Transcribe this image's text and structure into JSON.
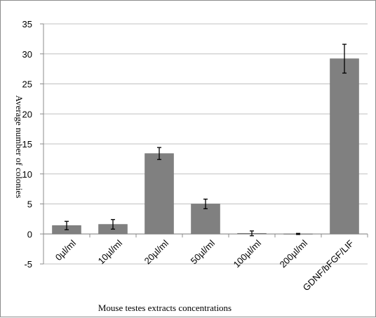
{
  "chart_data": {
    "type": "bar",
    "title": "",
    "xlabel": "Mouse testes extracts concentrations",
    "ylabel": "Average number of colonies",
    "categories": [
      "0µl/ml",
      "10µl/ml",
      "20µl/ml",
      "50µl/ml",
      "100µl/ml",
      "200µl/ml",
      "GDNF/bFGF/LIF"
    ],
    "values": [
      1.4,
      1.6,
      13.4,
      5.0,
      0.1,
      0.0,
      29.2
    ],
    "errors": [
      0.7,
      0.8,
      1.0,
      0.8,
      0.4,
      0.1,
      2.4
    ],
    "ylim": [
      -5,
      35
    ],
    "yticks": [
      -5,
      0,
      5,
      10,
      15,
      20,
      25,
      30,
      35
    ],
    "grid": true,
    "legend": "none",
    "bar_color": "#808080",
    "bar_edge_color": "#6e6e6e",
    "grid_color": "#c0c0c0",
    "axis_color": "#8c8c8c"
  }
}
